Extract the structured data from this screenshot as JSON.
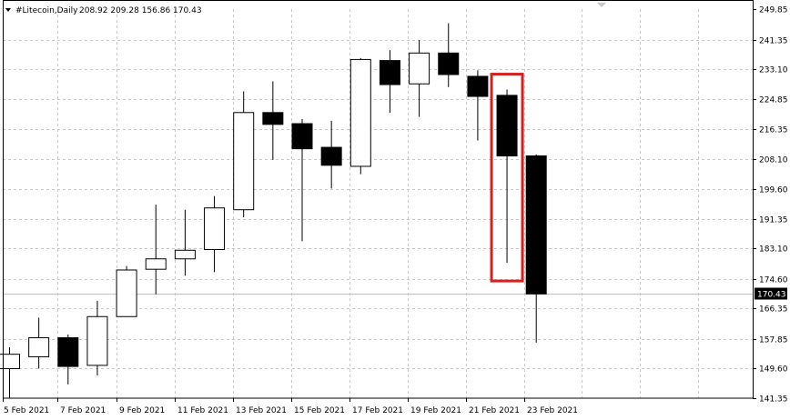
{
  "header": {
    "symbol_period": "#Litecoin,Daily",
    "ohlc": "208.92 209.28 156.86 170.43"
  },
  "chart_data": {
    "type": "candlestick",
    "ylim": [
      141.35,
      249.85
    ],
    "y_ticks": [
      "249.85",
      "241.35",
      "233.10",
      "224.85",
      "216.35",
      "208.10",
      "199.60",
      "191.35",
      "183.10",
      "174.60",
      "166.35",
      "157.85",
      "149.60",
      "141.35"
    ],
    "x_tick_labels": [
      "5 Feb 2021",
      "7 Feb 2021",
      "9 Feb 2021",
      "11 Feb 2021",
      "13 Feb 2021",
      "15 Feb 2021",
      "17 Feb 2021",
      "19 Feb 2021",
      "21 Feb 2021",
      "23 Feb 2021"
    ],
    "grid": true,
    "current_price": "170.43",
    "colors": {
      "bull_fill": "#ffffff",
      "bear_fill": "#000000",
      "outline": "#000000",
      "highlight": "#d42020",
      "grid": "#c8c8c8"
    },
    "candles": [
      {
        "date": "4 Feb 2021",
        "open": 149.6,
        "high": 155.5,
        "low": 141.5,
        "close": 153.6
      },
      {
        "date": "5 Feb 2021",
        "open": 152.9,
        "high": 163.8,
        "low": 149.6,
        "close": 158.2
      },
      {
        "date": "6 Feb 2021",
        "open": 158.2,
        "high": 159.1,
        "low": 145.2,
        "close": 150.2
      },
      {
        "date": "7 Feb 2021",
        "open": 150.5,
        "high": 168.5,
        "low": 147.7,
        "close": 164.1
      },
      {
        "date": "8 Feb 2021",
        "open": 164.1,
        "high": 178.2,
        "low": 164.1,
        "close": 177.1
      },
      {
        "date": "9 Feb 2021",
        "open": 177.3,
        "high": 195.3,
        "low": 170.3,
        "close": 180.2
      },
      {
        "date": "10 Feb 2021",
        "open": 180.2,
        "high": 193.9,
        "low": 175.5,
        "close": 182.6
      },
      {
        "date": "11 Feb 2021",
        "open": 182.8,
        "high": 197.7,
        "low": 176.5,
        "close": 194.4
      },
      {
        "date": "12 Feb 2021",
        "open": 193.9,
        "high": 226.9,
        "low": 191.8,
        "close": 221.0
      },
      {
        "date": "13 Feb 2021",
        "open": 221.0,
        "high": 229.7,
        "low": 207.8,
        "close": 217.7
      },
      {
        "date": "14 Feb 2021",
        "open": 217.9,
        "high": 219.2,
        "low": 185.1,
        "close": 210.9
      },
      {
        "date": "15 Feb 2021",
        "open": 211.3,
        "high": 218.7,
        "low": 199.8,
        "close": 206.3
      },
      {
        "date": "16 Feb 2021",
        "open": 206.0,
        "high": 236.2,
        "low": 203.8,
        "close": 235.8
      },
      {
        "date": "17 Feb 2021",
        "open": 235.5,
        "high": 238.4,
        "low": 220.9,
        "close": 228.8
      },
      {
        "date": "18 Feb 2021",
        "open": 229.0,
        "high": 241.2,
        "low": 219.8,
        "close": 237.6
      },
      {
        "date": "19 Feb 2021",
        "open": 237.6,
        "high": 245.9,
        "low": 228.1,
        "close": 231.6
      },
      {
        "date": "20 Feb 2021",
        "open": 231.1,
        "high": 232.8,
        "low": 213.2,
        "close": 225.5
      },
      {
        "date": "21 Feb 2021",
        "open": 225.8,
        "high": 227.4,
        "low": 179.1,
        "close": 208.9
      },
      {
        "date": "22 Feb 2021",
        "open": 208.92,
        "high": 209.28,
        "low": 156.86,
        "close": 170.43
      }
    ],
    "highlight_candle_index": 17
  }
}
